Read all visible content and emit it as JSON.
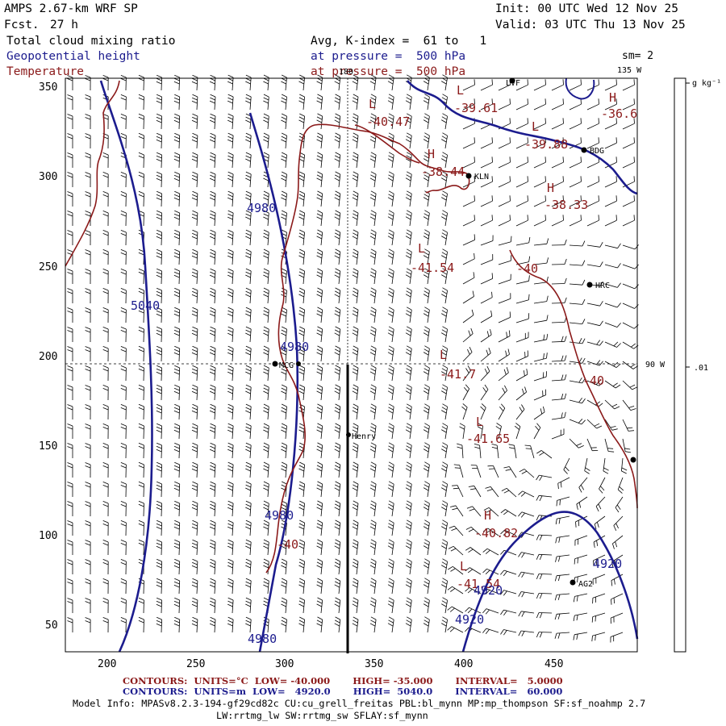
{
  "header": {
    "model": "AMPS 2.67-km WRF SP",
    "fcst_label": "Fcst.",
    "fcst_value": "27 h",
    "init": "Init: 00 UTC Wed 12 Nov 25",
    "valid": "Valid: 03 UTC Thu 13 Nov 25",
    "field1": "Total cloud mixing ratio",
    "field1_info": "Avg, K-index =  61 to   1",
    "field2": "Geopotential height",
    "field2_info": "at pressure =  500 hPa",
    "field3": "Temperature",
    "field3_info": "at pressure =  500 hPa",
    "smoothing": "sm= 2",
    "colorbar_units": "g kg⁻¹",
    "colorbar_value": ".01"
  },
  "map": {
    "x_ticks": [
      "200",
      "250",
      "300",
      "350",
      "400",
      "450"
    ],
    "y_ticks": [
      "350",
      "300",
      "250",
      "200",
      "150",
      "100",
      "50"
    ],
    "graticule_labels": {
      "top_180": "180",
      "top_135w": "135 W",
      "right_90w": "90 W"
    },
    "stations": [
      {
        "name": "LVF"
      },
      {
        "name": "BDG"
      },
      {
        "name": "KLN"
      },
      {
        "name": "HRC"
      },
      {
        "name": "MCG"
      },
      {
        "name": "Henry"
      },
      {
        "name": "AG2"
      },
      {
        "name": ""
      }
    ],
    "height_labels": [
      "4980",
      "5040",
      "4980",
      "4980",
      "4980",
      "4920",
      "4920",
      "4920"
    ],
    "temp_labels": [
      "-40",
      "-40",
      "-40"
    ],
    "extrema": [
      {
        "symbol": "L",
        "value": "-39.61"
      },
      {
        "symbol": "L",
        "value": "-40.47"
      },
      {
        "symbol": "H",
        "value": "-36.6"
      },
      {
        "symbol": "L",
        "value": "-39.88"
      },
      {
        "symbol": "H",
        "value": "-38.44"
      },
      {
        "symbol": "H",
        "value": "-38.33"
      },
      {
        "symbol": "L",
        "value": "-41.54"
      },
      {
        "symbol": "L",
        "value": "-41.7"
      },
      {
        "symbol": "L",
        "value": "-41.65"
      },
      {
        "symbol": "H",
        "value": "-40.82"
      },
      {
        "symbol": "L",
        "value": "-41.54"
      }
    ]
  },
  "footer": {
    "temp_contours": "CONTOURS:  UNITS=°C  LOW= -40.000       HIGH= -35.000       INTERVAL=   5.0000",
    "hgt_contours": "CONTOURS:  UNITS=m  LOW=   4920.0       HIGH=  5040.0       INTERVAL=   60.000",
    "model_info": "Model Info: MPASv8.2.3-194-gf29cd82c CU:cu_grell_freitas PBL:bl_mynn MP:mp_thompson SF:sf_noahmp 2.7",
    "model_info2": "LW:rrtmg_lw SW:rrtmg_sw SFLAY:sf_mynn"
  },
  "colors": {
    "height": "#1c1c8e",
    "temperature": "#8b1a1a",
    "barb": "#000000"
  }
}
